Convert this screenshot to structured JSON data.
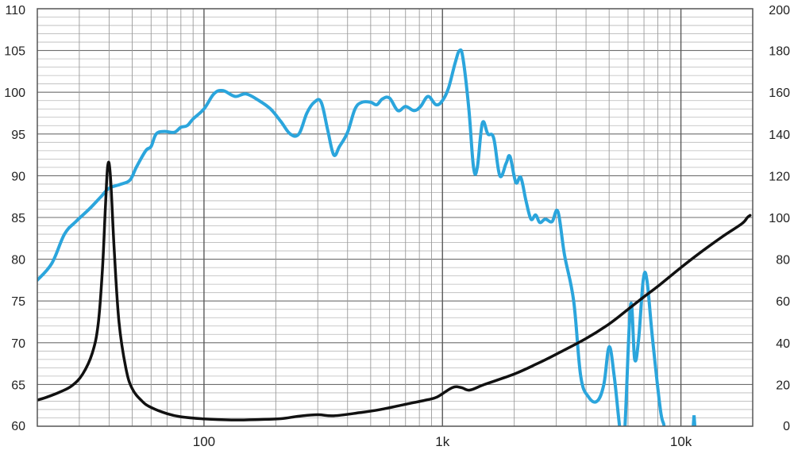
{
  "chart_data": {
    "type": "line",
    "title": "",
    "xlabel": "",
    "ylabel": "",
    "y2label": "",
    "x_scale": "log",
    "xlim": [
      20,
      20000
    ],
    "ylim": [
      60,
      110
    ],
    "y2lim": [
      0,
      200
    ],
    "grid": true,
    "legend": "none",
    "x_tick_labels": [
      {
        "value": 100,
        "label": "100"
      },
      {
        "value": 1000,
        "label": "1k"
      },
      {
        "value": 10000,
        "label": "10k"
      }
    ],
    "y_tick_labels": [
      "60",
      "65",
      "70",
      "75",
      "80",
      "85",
      "90",
      "95",
      "100",
      "105",
      "110"
    ],
    "y2_tick_labels": [
      "0",
      "20",
      "40",
      "60",
      "80",
      "100",
      "120",
      "140",
      "160",
      "180",
      "200"
    ],
    "series": [
      {
        "axis": "left",
        "color": "#2ba5dc",
        "points": [
          [
            20,
            77.5
          ],
          [
            23,
            79.5
          ],
          [
            26,
            83
          ],
          [
            29,
            84.5
          ],
          [
            33,
            86
          ],
          [
            37,
            87.5
          ],
          [
            40,
            88.5
          ],
          [
            45,
            89
          ],
          [
            49,
            89.5
          ],
          [
            52,
            91
          ],
          [
            57,
            93
          ],
          [
            60,
            93.5
          ],
          [
            63,
            95
          ],
          [
            68,
            95.3
          ],
          [
            75,
            95.2
          ],
          [
            80,
            95.8
          ],
          [
            85,
            96
          ],
          [
            90,
            96.8
          ],
          [
            100,
            98
          ],
          [
            110,
            99.8
          ],
          [
            120,
            100.2
          ],
          [
            135,
            99.5
          ],
          [
            150,
            99.8
          ],
          [
            170,
            99
          ],
          [
            190,
            98
          ],
          [
            210,
            96.5
          ],
          [
            230,
            95
          ],
          [
            250,
            95
          ],
          [
            270,
            97.5
          ],
          [
            290,
            98.8
          ],
          [
            310,
            98.8
          ],
          [
            330,
            95.5
          ],
          [
            350,
            92.5
          ],
          [
            370,
            93.5
          ],
          [
            400,
            95.2
          ],
          [
            430,
            98
          ],
          [
            460,
            98.8
          ],
          [
            500,
            98.8
          ],
          [
            530,
            98.5
          ],
          [
            560,
            99.2
          ],
          [
            600,
            99.3
          ],
          [
            650,
            97.8
          ],
          [
            700,
            98.3
          ],
          [
            760,
            97.8
          ],
          [
            810,
            98.3
          ],
          [
            870,
            99.5
          ],
          [
            940,
            98.5
          ],
          [
            1000,
            99
          ],
          [
            1060,
            100.5
          ],
          [
            1130,
            103.5
          ],
          [
            1180,
            105
          ],
          [
            1220,
            104
          ],
          [
            1290,
            98
          ],
          [
            1350,
            91
          ],
          [
            1400,
            91
          ],
          [
            1470,
            96.3
          ],
          [
            1550,
            95
          ],
          [
            1640,
            94.5
          ],
          [
            1740,
            90
          ],
          [
            1850,
            91.5
          ],
          [
            1920,
            92.3
          ],
          [
            2030,
            89.2
          ],
          [
            2130,
            89.8
          ],
          [
            2240,
            87
          ],
          [
            2350,
            84.8
          ],
          [
            2460,
            85.3
          ],
          [
            2560,
            84.4
          ],
          [
            2700,
            84.8
          ],
          [
            2880,
            84.5
          ],
          [
            3050,
            85.7
          ],
          [
            3250,
            80.5
          ],
          [
            3550,
            75
          ],
          [
            3800,
            66
          ],
          [
            4100,
            63.5
          ],
          [
            4450,
            63
          ],
          [
            4750,
            65
          ],
          [
            5000,
            69.5
          ],
          [
            5250,
            66
          ],
          [
            5480,
            61
          ],
          [
            5600,
            59
          ],
          [
            5800,
            59
          ],
          [
            6150,
            74.5
          ],
          [
            6400,
            68
          ],
          [
            6650,
            70.5
          ],
          [
            6950,
            77.5
          ],
          [
            7200,
            77.5
          ],
          [
            7600,
            70.5
          ],
          [
            8200,
            62
          ],
          [
            8500,
            60
          ],
          [
            8500,
            58
          ]
        ]
      },
      {
        "axis": "right",
        "color": "#111111",
        "points": [
          [
            20,
            12.5
          ],
          [
            22,
            14
          ],
          [
            25,
            16.5
          ],
          [
            28,
            19.5
          ],
          [
            31,
            25
          ],
          [
            34,
            35
          ],
          [
            36,
            49
          ],
          [
            37.5,
            75
          ],
          [
            38.6,
            105
          ],
          [
            39.5,
            125
          ],
          [
            40.5,
            120
          ],
          [
            42,
            85
          ],
          [
            44,
            50
          ],
          [
            47,
            28
          ],
          [
            50,
            18
          ],
          [
            55,
            12
          ],
          [
            60,
            9
          ],
          [
            70,
            6
          ],
          [
            80,
            4.5
          ],
          [
            100,
            3.5
          ],
          [
            130,
            3
          ],
          [
            170,
            3.2
          ],
          [
            210,
            3.6
          ],
          [
            250,
            4.8
          ],
          [
            300,
            5.5
          ],
          [
            350,
            5
          ],
          [
            450,
            6.5
          ],
          [
            550,
            8
          ],
          [
            700,
            10.5
          ],
          [
            850,
            12.5
          ],
          [
            950,
            14
          ],
          [
            1100,
            18.5
          ],
          [
            1200,
            18.5
          ],
          [
            1300,
            17.3
          ],
          [
            1500,
            20
          ],
          [
            2000,
            25
          ],
          [
            2500,
            30
          ],
          [
            3000,
            34.5
          ],
          [
            4000,
            42
          ],
          [
            5000,
            49
          ],
          [
            6000,
            56
          ],
          [
            7000,
            62
          ],
          [
            8000,
            67
          ],
          [
            10000,
            76
          ],
          [
            12000,
            83
          ],
          [
            15000,
            91
          ],
          [
            18000,
            97
          ],
          [
            19000,
            100
          ],
          [
            19500,
            101
          ]
        ]
      }
    ]
  }
}
